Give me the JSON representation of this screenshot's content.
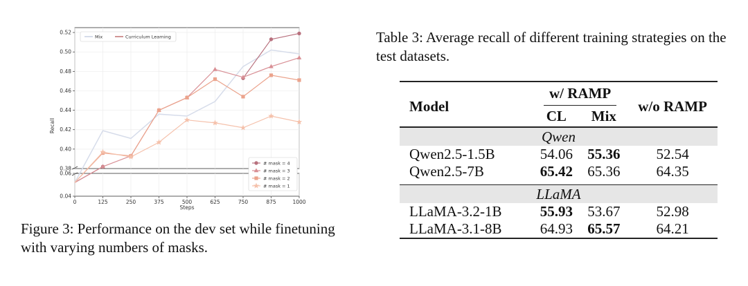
{
  "figure": {
    "caption": "Figure 3: Performance on the dev set while finetuning with varying numbers of masks."
  },
  "chart_data": {
    "type": "line",
    "xlabel": "Steps",
    "ylabel": "Recall",
    "x": [
      0,
      125,
      250,
      375,
      500,
      625,
      750,
      875,
      1000
    ],
    "x_ticks": [
      "0",
      "125",
      "250",
      "375",
      "500",
      "625",
      "750",
      "875",
      "1000"
    ],
    "y_ticks_upper": [
      "0.38",
      "0.40",
      "0.42",
      "0.44",
      "0.46",
      "0.48",
      "0.50",
      "0.52"
    ],
    "y_ticks_lower": [
      "0.04",
      "0.06"
    ],
    "ylim_upper": [
      0.38,
      0.525
    ],
    "ylim_lower": [
      0.04,
      0.06
    ],
    "broken_axis": true,
    "grid": true,
    "legends": [
      {
        "position": "top-left",
        "entries": [
          "Mix",
          "Curriculum Learning"
        ],
        "colors": [
          "#d6dcea",
          "#d19595"
        ]
      },
      {
        "position": "bottom-right",
        "entries": [
          "# mask = 4",
          "# mask = 3",
          "# mask = 2",
          "# mask = 1"
        ]
      }
    ],
    "series": [
      {
        "name": "Mix",
        "color": "#d6dcea",
        "values": [
          0.052,
          0.419,
          0.411,
          0.436,
          0.434,
          0.449,
          0.485,
          0.502,
          0.498
        ]
      },
      {
        "name": "# mask = 4",
        "color": "#b8717e",
        "marker": "circle",
        "values": [
          0.052,
          0.382,
          null,
          null,
          null,
          null,
          0.473,
          0.513,
          0.519
        ]
      },
      {
        "name": "# mask = 3",
        "color": "#d88e94",
        "marker": "triangle",
        "values": [
          0.052,
          0.382,
          0.393,
          0.44,
          0.453,
          0.482,
          0.474,
          0.485,
          0.494
        ]
      },
      {
        "name": "# mask = 2",
        "color": "#eba38c",
        "marker": "square",
        "values": [
          0.052,
          0.396,
          0.393,
          0.44,
          0.453,
          0.472,
          0.454,
          0.476,
          0.471
        ]
      },
      {
        "name": "# mask = 1",
        "color": "#f5c1ab",
        "marker": "star",
        "values": [
          0.052,
          0.397,
          0.392,
          0.407,
          0.43,
          0.427,
          0.422,
          0.434,
          0.428
        ]
      }
    ]
  },
  "table": {
    "caption": "Table 3: Average recall of different training strategies on the test datasets.",
    "col_model": "Model",
    "col_with": "w/ RAMP",
    "col_cl": "CL",
    "col_mix": "Mix",
    "col_without": "w/o RAMP",
    "groups": [
      {
        "name": "Qwen",
        "rows": [
          {
            "model": "Qwen2.5-1.5B",
            "cl": "54.06",
            "mix": "55.36",
            "wo": "52.54",
            "bold": "mix"
          },
          {
            "model": "Qwen2.5-7B",
            "cl": "65.42",
            "mix": "65.36",
            "wo": "64.35",
            "bold": "cl"
          }
        ]
      },
      {
        "name": "LLaMA",
        "rows": [
          {
            "model": "LLaMA-3.2-1B",
            "cl": "55.93",
            "mix": "53.67",
            "wo": "52.98",
            "bold": "cl"
          },
          {
            "model": "LLaMA-3.1-8B",
            "cl": "64.93",
            "mix": "65.57",
            "wo": "64.21",
            "bold": "mix"
          }
        ]
      }
    ]
  }
}
